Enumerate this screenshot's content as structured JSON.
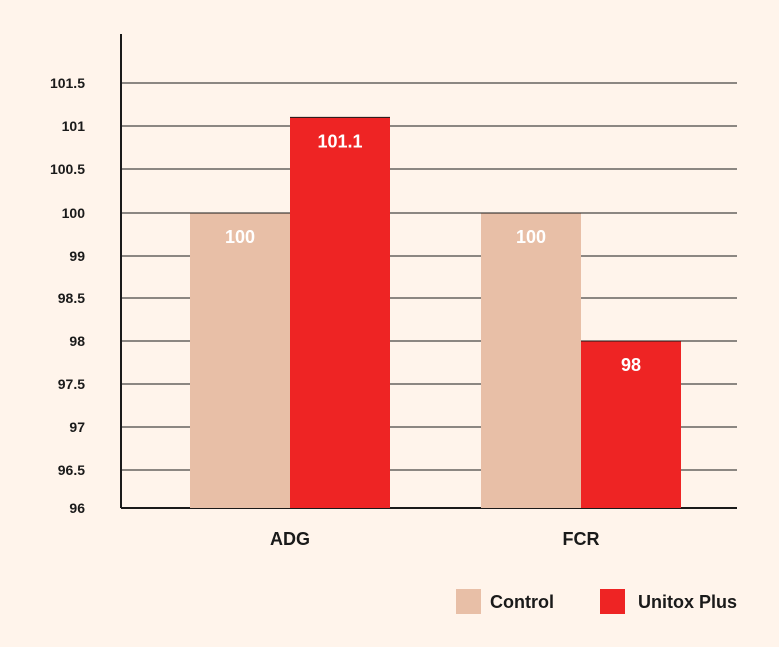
{
  "chart_data": {
    "type": "bar",
    "categories": [
      "ADG",
      "FCR"
    ],
    "series": [
      {
        "name": "Control",
        "values": [
          100,
          100
        ],
        "labels": [
          "100",
          "100"
        ],
        "color": "#e8bfa7"
      },
      {
        "name": "Unitox Plus",
        "values": [
          101.1,
          98
        ],
        "labels": [
          "101.1",
          "98"
        ],
        "color": "#ee2424"
      }
    ],
    "y_ticks": [
      {
        "label": "96",
        "value": 96
      },
      {
        "label": "96.5",
        "value": 96.5
      },
      {
        "label": "97",
        "value": 97
      },
      {
        "label": "97.5",
        "value": 97.5
      },
      {
        "label": "98",
        "value": 98
      },
      {
        "label": "98.5",
        "value": 98.5
      },
      {
        "label": "99",
        "value": 99
      },
      {
        "label": "100",
        "value": 100
      },
      {
        "label": "100.5",
        "value": 100.5
      },
      {
        "label": "101",
        "value": 101
      },
      {
        "label": "101.5",
        "value": 101.5
      }
    ],
    "grid": true,
    "legend_position": "bottom-right",
    "text_color": "#1a1a1a",
    "grid_color": "#1a1a1a",
    "data_label_color": "#ffffff"
  }
}
